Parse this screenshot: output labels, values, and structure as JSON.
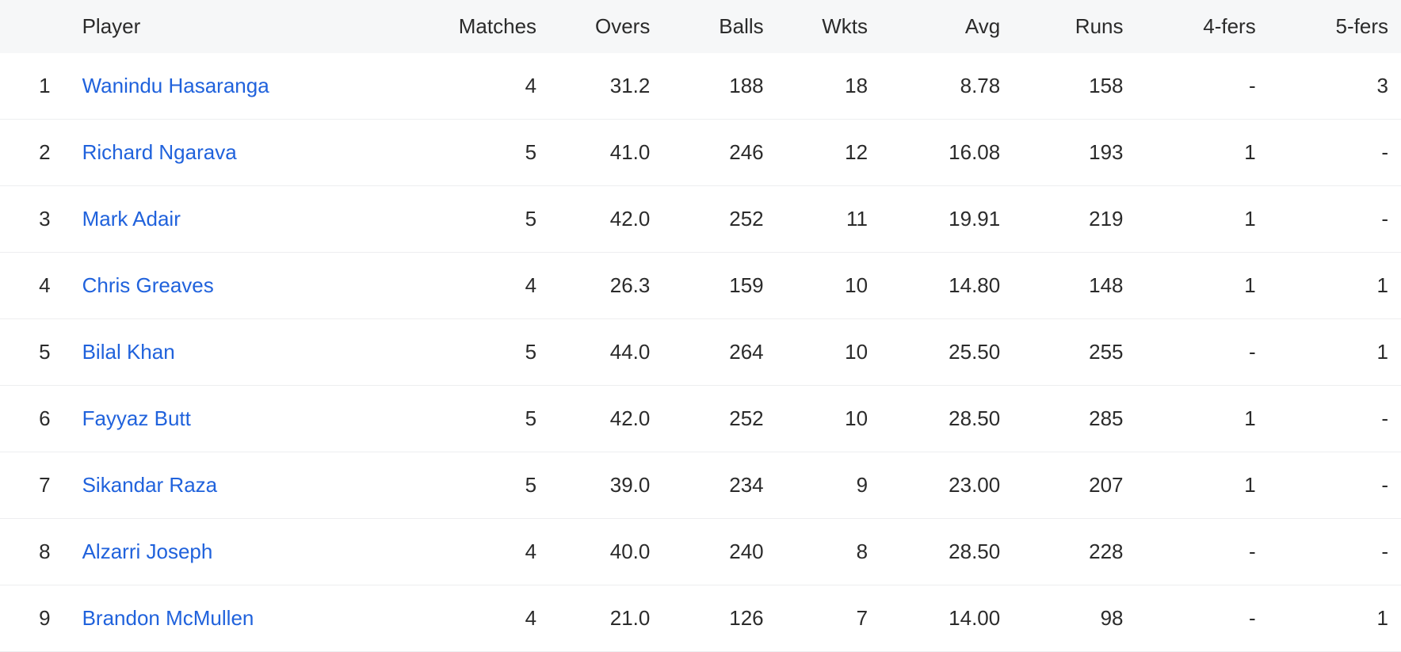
{
  "table": {
    "columns": [
      {
        "key": "rank",
        "label": "",
        "class": "col-rank"
      },
      {
        "key": "player",
        "label": "Player",
        "class": "col-player"
      },
      {
        "key": "matches",
        "label": "Matches",
        "class": "col-matches"
      },
      {
        "key": "overs",
        "label": "Overs",
        "class": "col-overs"
      },
      {
        "key": "balls",
        "label": "Balls",
        "class": "col-balls"
      },
      {
        "key": "wkts",
        "label": "Wkts",
        "class": "col-wkts"
      },
      {
        "key": "avg",
        "label": "Avg",
        "class": "col-avg"
      },
      {
        "key": "runs",
        "label": "Runs",
        "class": "col-runs"
      },
      {
        "key": "four",
        "label": "4-fers",
        "class": "col-4fers"
      },
      {
        "key": "five",
        "label": "5-fers",
        "class": "col-5fers"
      }
    ],
    "rows": [
      {
        "rank": "1",
        "player": "Wanindu Hasaranga",
        "matches": "4",
        "overs": "31.2",
        "balls": "188",
        "wkts": "18",
        "avg": "8.78",
        "runs": "158",
        "four": "-",
        "five": "3"
      },
      {
        "rank": "2",
        "player": "Richard Ngarava",
        "matches": "5",
        "overs": "41.0",
        "balls": "246",
        "wkts": "12",
        "avg": "16.08",
        "runs": "193",
        "four": "1",
        "five": "-"
      },
      {
        "rank": "3",
        "player": "Mark Adair",
        "matches": "5",
        "overs": "42.0",
        "balls": "252",
        "wkts": "11",
        "avg": "19.91",
        "runs": "219",
        "four": "1",
        "five": "-"
      },
      {
        "rank": "4",
        "player": "Chris Greaves",
        "matches": "4",
        "overs": "26.3",
        "balls": "159",
        "wkts": "10",
        "avg": "14.80",
        "runs": "148",
        "four": "1",
        "five": "1"
      },
      {
        "rank": "5",
        "player": "Bilal Khan",
        "matches": "5",
        "overs": "44.0",
        "balls": "264",
        "wkts": "10",
        "avg": "25.50",
        "runs": "255",
        "four": "-",
        "five": "1"
      },
      {
        "rank": "6",
        "player": "Fayyaz Butt",
        "matches": "5",
        "overs": "42.0",
        "balls": "252",
        "wkts": "10",
        "avg": "28.50",
        "runs": "285",
        "four": "1",
        "five": "-"
      },
      {
        "rank": "7",
        "player": "Sikandar Raza",
        "matches": "5",
        "overs": "39.0",
        "balls": "234",
        "wkts": "9",
        "avg": "23.00",
        "runs": "207",
        "four": "1",
        "five": "-"
      },
      {
        "rank": "8",
        "player": "Alzarri Joseph",
        "matches": "4",
        "overs": "40.0",
        "balls": "240",
        "wkts": "8",
        "avg": "28.50",
        "runs": "228",
        "four": "-",
        "five": "-"
      },
      {
        "rank": "9",
        "player": "Brandon McMullen",
        "matches": "4",
        "overs": "21.0",
        "balls": "126",
        "wkts": "7",
        "avg": "14.00",
        "runs": "98",
        "four": "-",
        "five": "1"
      }
    ],
    "link_color": "#2062dc",
    "header_bg": "#f6f7f8",
    "border_color": "#edeef0"
  }
}
